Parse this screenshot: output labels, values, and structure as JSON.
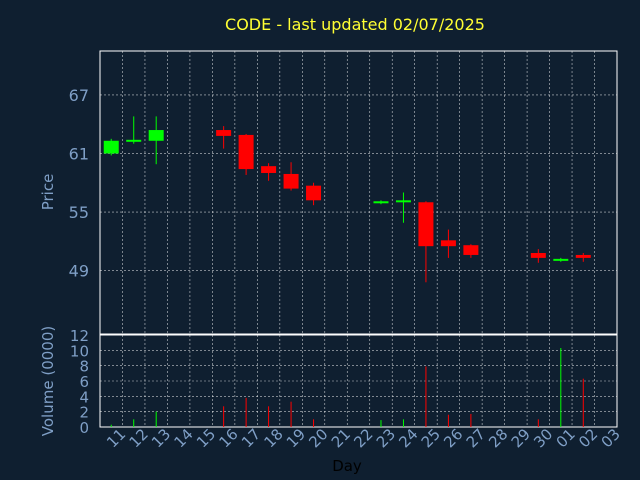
{
  "chart_data": {
    "type": "candlestick",
    "title": "CODE - last updated 02/07/2025",
    "xlabel": "Day",
    "price_ylabel": "Price",
    "volume_ylabel": "Volume (0000)",
    "price_ylim": [
      42.5,
      71.5
    ],
    "volume_ylim": [
      0,
      12
    ],
    "price_ticks": [
      49,
      55,
      61,
      67
    ],
    "volume_ticks": [
      0,
      2,
      4,
      6,
      8,
      10,
      12
    ],
    "categories": [
      "11",
      "12",
      "13",
      "14",
      "15",
      "16",
      "17",
      "18",
      "19",
      "20",
      "21",
      "22",
      "23",
      "24",
      "25",
      "26",
      "27",
      "28",
      "29",
      "30",
      "01",
      "02",
      "03"
    ],
    "candles": [
      {
        "day": "11",
        "open": 61.0,
        "high": 62.5,
        "low": 60.8,
        "close": 62.3,
        "volume": 0.3
      },
      {
        "day": "12",
        "open": 62.2,
        "high": 64.8,
        "low": 62.0,
        "close": 62.4,
        "volume": 1.0
      },
      {
        "day": "13",
        "open": 62.3,
        "high": 64.8,
        "low": 59.9,
        "close": 63.4,
        "volume": 2.0
      },
      {
        "day": "16",
        "open": 63.4,
        "high": 63.8,
        "low": 61.5,
        "close": 62.8,
        "volume": 2.7
      },
      {
        "day": "17",
        "open": 62.9,
        "high": 63.0,
        "low": 58.8,
        "close": 59.4,
        "volume": 3.8
      },
      {
        "day": "18",
        "open": 59.7,
        "high": 60.0,
        "low": 58.2,
        "close": 59.0,
        "volume": 2.7
      },
      {
        "day": "19",
        "open": 58.9,
        "high": 60.1,
        "low": 57.2,
        "close": 57.4,
        "volume": 3.3
      },
      {
        "day": "20",
        "open": 57.7,
        "high": 58.0,
        "low": 55.7,
        "close": 56.2,
        "volume": 1.0
      },
      {
        "day": "23",
        "open": 56.0,
        "high": 56.2,
        "low": 55.8,
        "close": 56.1,
        "volume": 0.9
      },
      {
        "day": "24",
        "open": 56.0,
        "high": 57.0,
        "low": 53.9,
        "close": 56.2,
        "volume": 1.0
      },
      {
        "day": "25",
        "open": 56.0,
        "high": 56.1,
        "low": 47.8,
        "close": 51.5,
        "volume": 7.9
      },
      {
        "day": "26",
        "open": 52.1,
        "high": 53.2,
        "low": 50.3,
        "close": 51.5,
        "volume": 1.6
      },
      {
        "day": "27",
        "open": 51.6,
        "high": 51.7,
        "low": 50.3,
        "close": 50.6,
        "volume": 1.7
      },
      {
        "day": "30",
        "open": 50.8,
        "high": 51.2,
        "low": 49.8,
        "close": 50.3,
        "volume": 1.0
      },
      {
        "day": "01",
        "open": 50.0,
        "high": 50.3,
        "low": 49.9,
        "close": 50.2,
        "volume": 10.3
      },
      {
        "day": "02",
        "open": 50.6,
        "high": 50.8,
        "low": 49.9,
        "close": 50.3,
        "volume": 6.3
      }
    ],
    "grid": true,
    "colors": {
      "background": "#0f1f30",
      "up": "#00ff00",
      "down": "#ff0000",
      "grid": "#ffffff",
      "axis_text": "#7f9fc6",
      "title": "#ffff33"
    }
  }
}
